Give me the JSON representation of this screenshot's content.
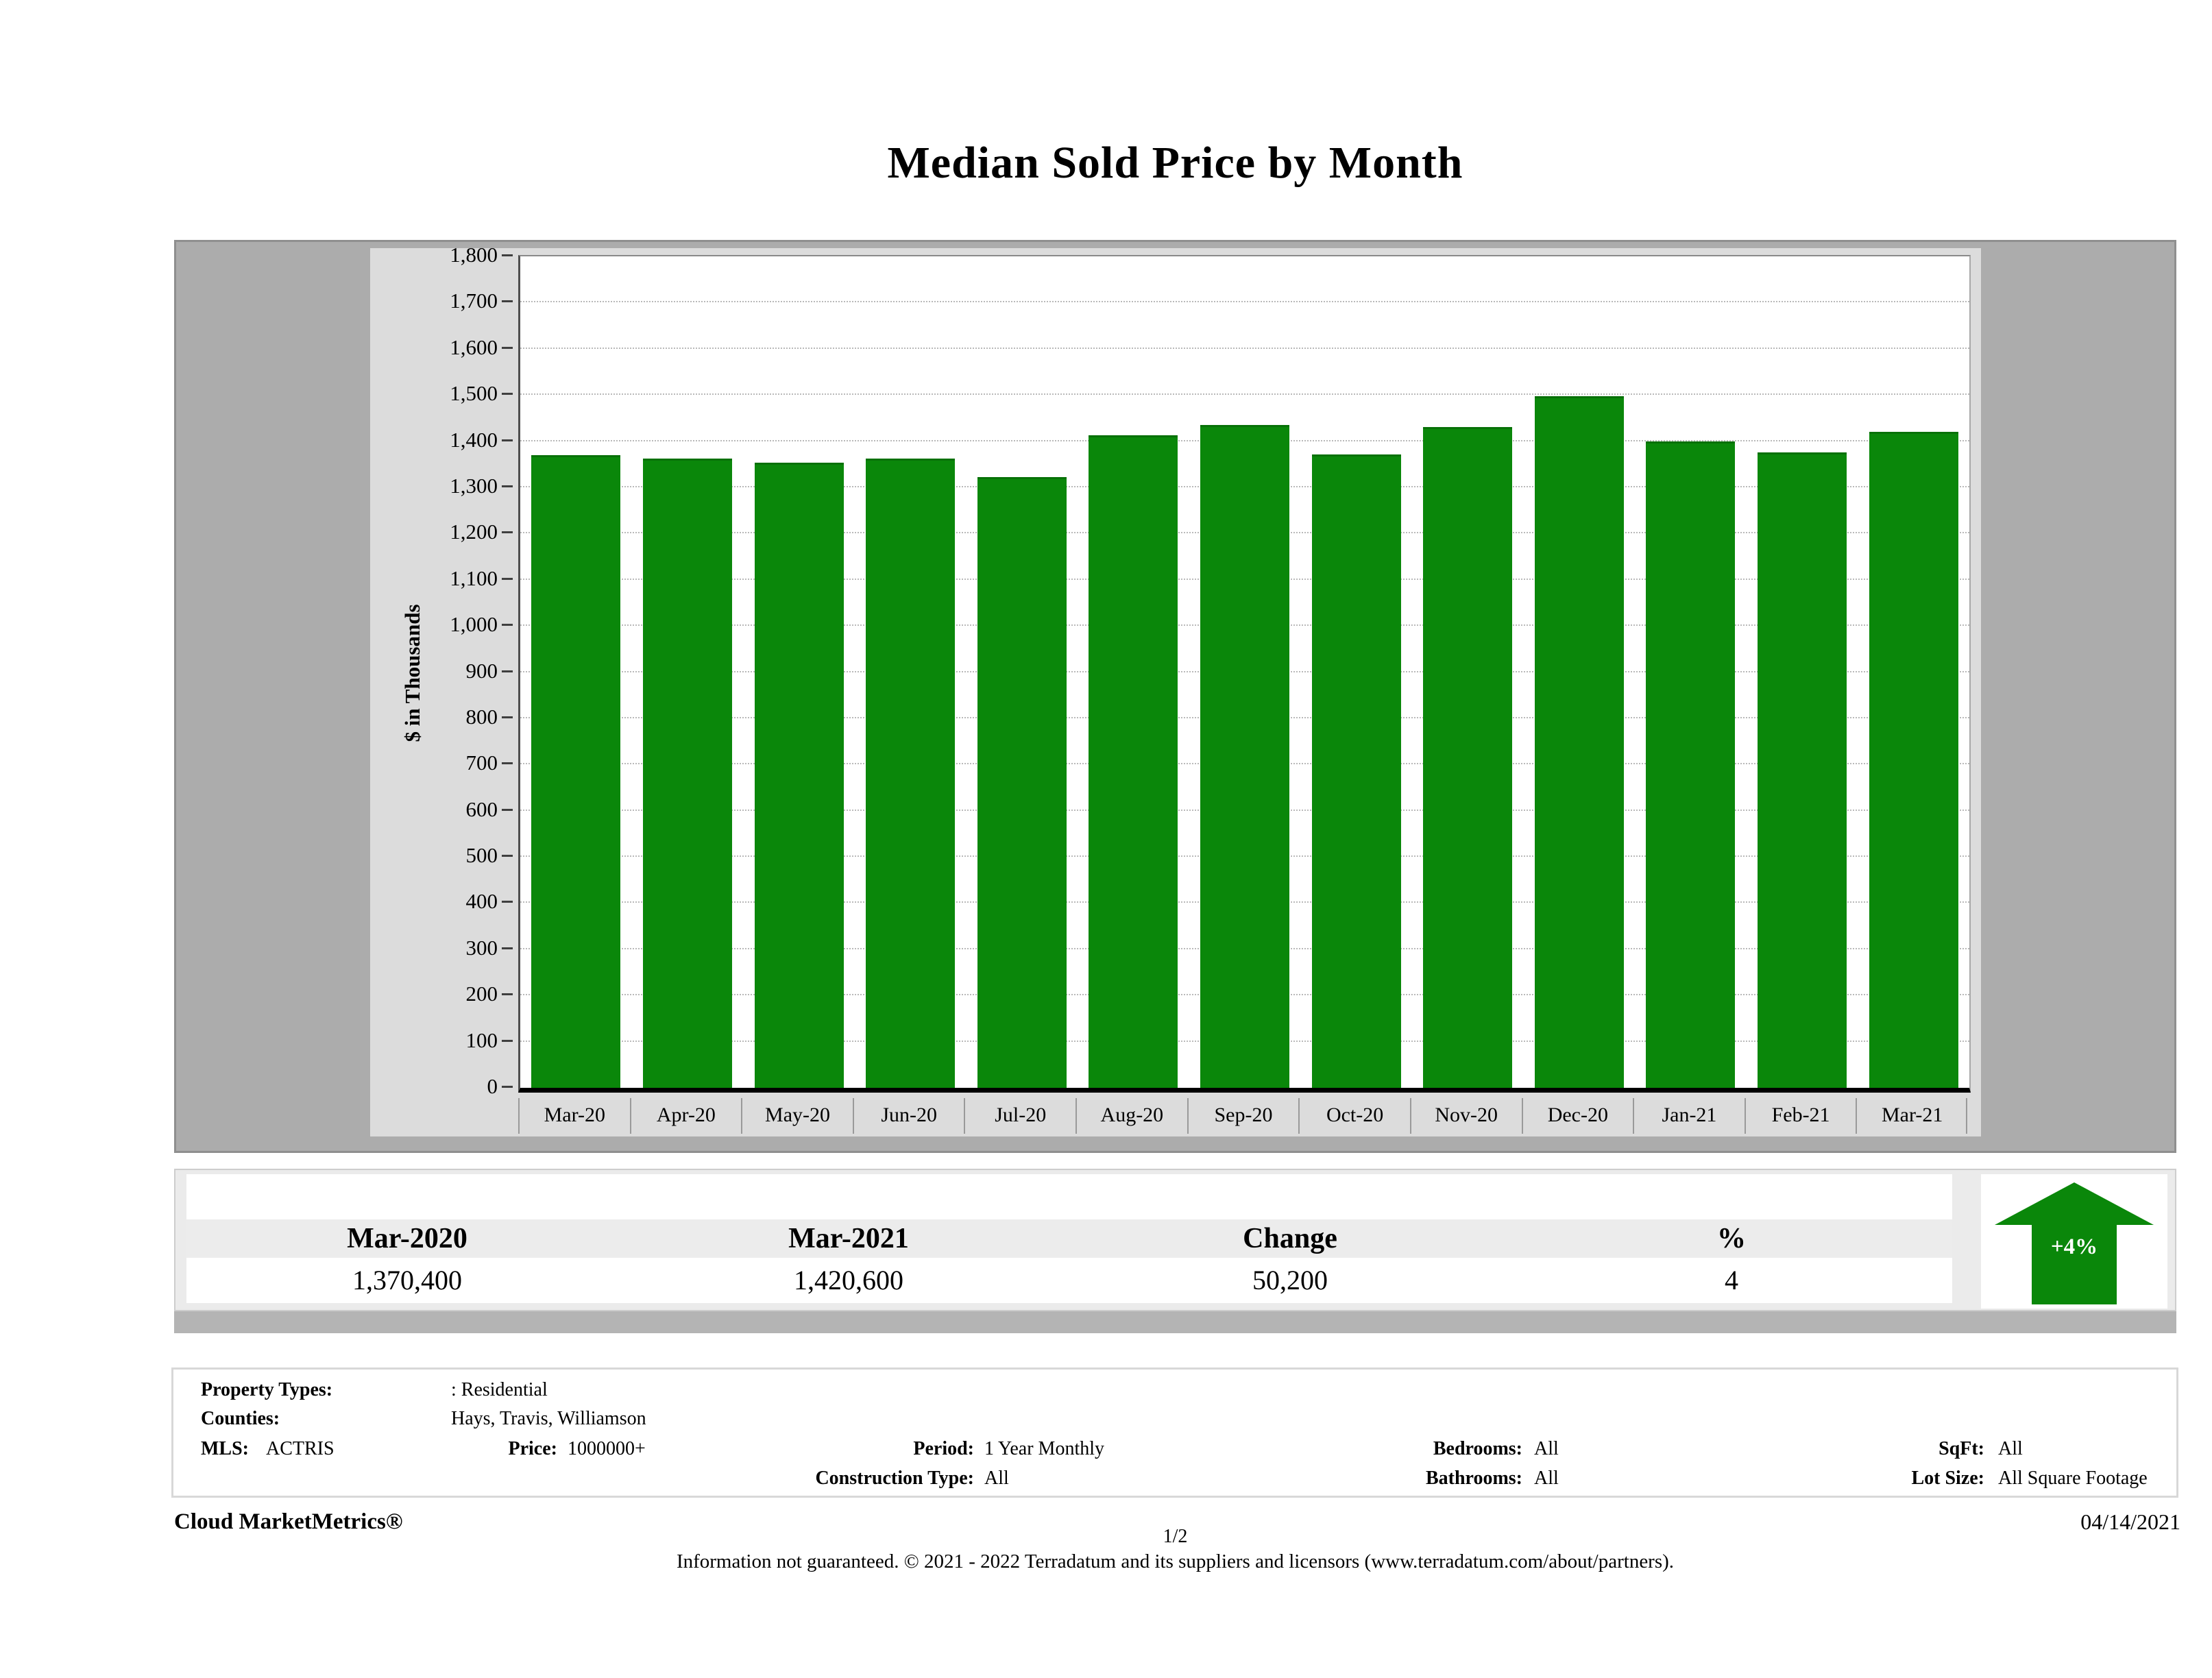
{
  "title": "Median Sold Price by Month",
  "chart_data": {
    "type": "bar",
    "title": "Median Sold Price by Month",
    "categories": [
      "Mar-20",
      "Apr-20",
      "May-20",
      "Jun-20",
      "Jul-20",
      "Aug-20",
      "Sep-20",
      "Oct-20",
      "Nov-20",
      "Dec-20",
      "Jan-21",
      "Feb-21",
      "Mar-21"
    ],
    "values": [
      1370.4,
      1362,
      1353,
      1363,
      1322,
      1413,
      1435,
      1371,
      1430,
      1498,
      1400,
      1376,
      1420.6
    ],
    "xlabel": "",
    "ylabel": "$ in Thousands",
    "ylim": [
      0,
      1800
    ],
    "ytick_step": 100,
    "ytick_labels": [
      "0",
      "100",
      "200",
      "300",
      "400",
      "500",
      "600",
      "700",
      "800",
      "900",
      "1,000",
      "1,100",
      "1,200",
      "1,300",
      "1,400",
      "1,500",
      "1,600",
      "1,700",
      "1,800"
    ],
    "grid": "horizontal dotted",
    "legend": "none",
    "bar_color": "#0a870a"
  },
  "summary_table": {
    "columns": [
      "Mar-2020",
      "Mar-2021",
      "Change",
      "%"
    ],
    "row": [
      "1,370,400",
      "1,420,600",
      "50,200",
      "4"
    ],
    "trend_arrow": {
      "direction": "up",
      "label": "+4%",
      "color": "#0a870a"
    }
  },
  "filters": {
    "property_types_label": "Property Types:",
    "property_types": ": Residential",
    "counties_label": "Counties:",
    "counties": "Hays, Travis, Williamson",
    "mls_label": "MLS:",
    "mls": "ACTRIS",
    "price_label": "Price:",
    "price": "1000000+",
    "period_label": "Period:",
    "period": "1 Year Monthly",
    "construction_type_label": "Construction Type:",
    "construction_type": "All",
    "bedrooms_label": "Bedrooms:",
    "bedrooms": "All",
    "bathrooms_label": "Bathrooms:",
    "bathrooms": "All",
    "sqft_label": "SqFt:",
    "sqft": "All",
    "lot_size_label": "Lot Size:",
    "lot_size": "All Square Footage"
  },
  "footer": {
    "brand": "Cloud MarketMetrics®",
    "page": "1/2",
    "date": "04/14/2021",
    "disclaimer": "Information not guaranteed. © 2021 - 2022 Terradatum and its suppliers and licensors (www.terradatum.com/about/partners)."
  }
}
